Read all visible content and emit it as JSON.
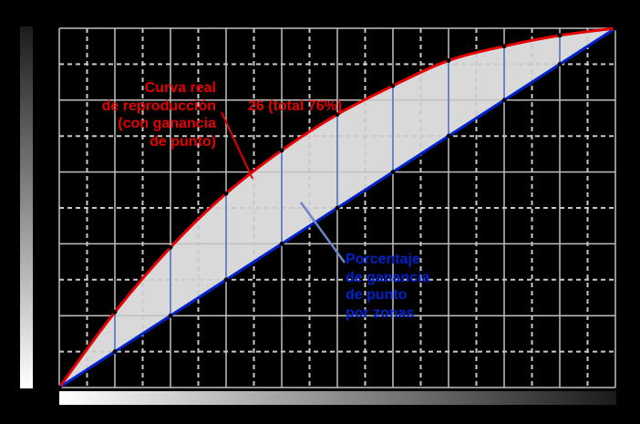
{
  "colors": {
    "background": "#000000",
    "curve_red": "#e60000",
    "diagonal_blue": "#0022cc",
    "label_blue": "#0022cc",
    "connector_blue": "#6b85c9",
    "area_fill": "#d9d9d9",
    "grid_major": "#c0c0c0",
    "grid_minor": "#c9c9c9",
    "point_dot": "#000000"
  },
  "labels": {
    "curve": [
      "Curva real",
      "de reproducción",
      "(con ganancia",
      "de punto)"
    ],
    "gain": "26 (total 76%)",
    "zones": [
      "Porcentaje",
      "de ganancia",
      "de punto",
      "por zonas"
    ]
  },
  "chart_data": {
    "type": "line",
    "title": "",
    "xlabel": "",
    "ylabel": "",
    "x": [
      0,
      10,
      20,
      30,
      40,
      50,
      60,
      70,
      80,
      90,
      100
    ],
    "series": [
      {
        "name": "Curva real de reproducción (con ganancia de punto)",
        "color": "#e60000",
        "values": [
          0,
          21,
          39,
          54,
          66,
          76,
          84,
          91,
          95,
          98,
          100
        ]
      },
      {
        "name": "Porcentaje de ganancia de punto por zonas (diagonal ideal)",
        "color": "#0022cc",
        "values": [
          0,
          10,
          20,
          30,
          40,
          50,
          60,
          70,
          80,
          90,
          100
        ]
      }
    ],
    "gain_per_zone": [
      11,
      19,
      24,
      26,
      26,
      24,
      21,
      15,
      8
    ],
    "annotation": {
      "text": "26 (total 76%)",
      "at_x": 50,
      "gain": 26,
      "total": 76
    },
    "xlim": [
      0,
      100
    ],
    "ylim": [
      0,
      100
    ],
    "grid": {
      "x_divisions": 20,
      "y_divisions": 10,
      "major_every": 2,
      "minor_style": "dashed"
    },
    "legend": "none",
    "axis_ramps": {
      "x": "tone ramp white-to-black, left-to-right",
      "y": "tone ramp black-to-white, top-to-bottom"
    },
    "leaders": {
      "red": [
        243,
        123,
        277,
        196
      ],
      "blue": [
        330,
        222,
        378,
        288
      ]
    }
  }
}
